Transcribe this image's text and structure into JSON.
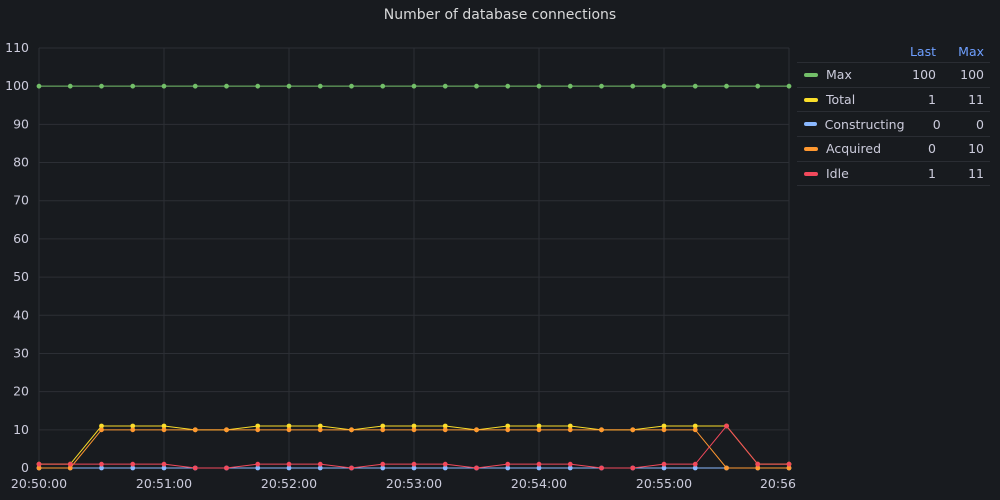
{
  "panel": {
    "title": "Number of database connections"
  },
  "legend": {
    "col_last": "Last",
    "col_max": "Max",
    "items": [
      {
        "name": "Max",
        "color": "#73bf69",
        "last": "100",
        "max": "100"
      },
      {
        "name": "Total",
        "color": "#fade2a",
        "last": "1",
        "max": "11"
      },
      {
        "name": "Constructing",
        "color": "#8ab8ff",
        "last": "0",
        "max": "0"
      },
      {
        "name": "Acquired",
        "color": "#ff9830",
        "last": "0",
        "max": "10"
      },
      {
        "name": "Idle",
        "color": "#f2495c",
        "last": "1",
        "max": "11"
      }
    ]
  },
  "chart_data": {
    "type": "line",
    "title": "Number of database connections",
    "xlabel": "",
    "ylabel": "",
    "ylim": [
      0,
      110
    ],
    "y_ticks": [
      0,
      10,
      20,
      30,
      40,
      50,
      60,
      70,
      80,
      90,
      100,
      110
    ],
    "x_ticks": [
      "20:50:00",
      "20:51:00",
      "20:52:00",
      "20:53:00",
      "20:54:00",
      "20:55:00",
      "20:56"
    ],
    "x": [
      "20:50:00",
      "20:50:15",
      "20:50:30",
      "20:50:45",
      "20:51:00",
      "20:51:15",
      "20:51:30",
      "20:51:45",
      "20:52:00",
      "20:52:15",
      "20:52:30",
      "20:52:45",
      "20:53:00",
      "20:53:15",
      "20:53:30",
      "20:53:45",
      "20:54:00",
      "20:54:15",
      "20:54:30",
      "20:54:45",
      "20:55:00",
      "20:55:15",
      "20:55:30",
      "20:55:45",
      "20:56:00"
    ],
    "grid": true,
    "legend_position": "right",
    "series": [
      {
        "name": "Max",
        "color": "#73bf69",
        "values": [
          100,
          100,
          100,
          100,
          100,
          100,
          100,
          100,
          100,
          100,
          100,
          100,
          100,
          100,
          100,
          100,
          100,
          100,
          100,
          100,
          100,
          100,
          100,
          100,
          100
        ]
      },
      {
        "name": "Total",
        "color": "#fade2a",
        "values": [
          1,
          1,
          11,
          11,
          11,
          10,
          10,
          11,
          11,
          11,
          10,
          11,
          11,
          11,
          10,
          11,
          11,
          11,
          10,
          10,
          11,
          11,
          11,
          1,
          1
        ]
      },
      {
        "name": "Constructing",
        "color": "#8ab8ff",
        "values": [
          0,
          0,
          0,
          0,
          0,
          0,
          0,
          0,
          0,
          0,
          0,
          0,
          0,
          0,
          0,
          0,
          0,
          0,
          0,
          0,
          0,
          0,
          0,
          0,
          0
        ]
      },
      {
        "name": "Acquired",
        "color": "#ff9830",
        "values": [
          0,
          0,
          10,
          10,
          10,
          10,
          10,
          10,
          10,
          10,
          10,
          10,
          10,
          10,
          10,
          10,
          10,
          10,
          10,
          10,
          10,
          10,
          0,
          0,
          0
        ]
      },
      {
        "name": "Idle",
        "color": "#f2495c",
        "values": [
          1,
          1,
          1,
          1,
          1,
          0,
          0,
          1,
          1,
          1,
          0,
          1,
          1,
          1,
          0,
          1,
          1,
          1,
          0,
          0,
          1,
          1,
          11,
          1,
          1
        ]
      }
    ]
  }
}
